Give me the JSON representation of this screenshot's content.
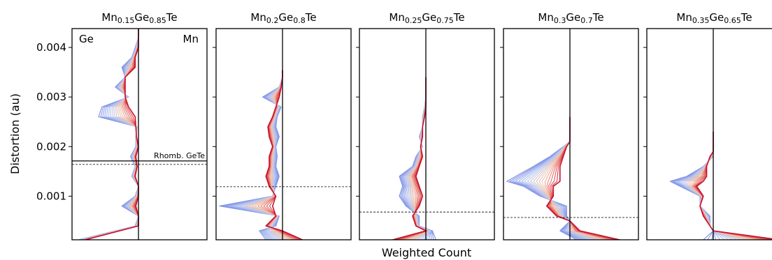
{
  "figure": {
    "ylabel": "Distortion (au)",
    "xlabel": "Weighted Count",
    "ylim": [
      0.00012,
      0.00438
    ],
    "yticks": [
      {
        "value": 0.001,
        "label": "0.001"
      },
      {
        "value": 0.002,
        "label": "0.002"
      },
      {
        "value": 0.003,
        "label": "0.003"
      },
      {
        "value": 0.004,
        "label": "0.004"
      }
    ],
    "gradient_colors": [
      "#7b8ee6",
      "#b6c6f2",
      "#f2c2ac",
      "#d4242c"
    ],
    "final_color": "#c8102e"
  },
  "chart_data": [
    {
      "type": "line",
      "composition": "Mn0.15Ge0.85Te",
      "title_parts": [
        {
          "t": "Mn",
          "s": false
        },
        {
          "t": "0.15",
          "s": true
        },
        {
          "t": "Ge",
          "s": false
        },
        {
          "t": "0.85",
          "s": true
        },
        {
          "t": "Te",
          "s": false
        }
      ],
      "left_label": "Ge",
      "right_label": "Mn",
      "dashed_y": 0.00164,
      "ref_line": {
        "y": 0.00171,
        "label": "Rhomb. GeTe"
      },
      "y": [
        0.00012,
        0.0004,
        0.0006,
        0.0008,
        0.001,
        0.0012,
        0.0014,
        0.0016,
        0.0018,
        0.002,
        0.0022,
        0.0024,
        0.0026,
        0.0028,
        0.003,
        0.0032,
        0.0034,
        0.0036,
        0.0038,
        0.004,
        0.0042,
        0.00438
      ],
      "start": [
        -0.9,
        -0.05,
        0.0,
        -0.25,
        -0.05,
        0.0,
        -0.1,
        -0.05,
        -0.12,
        -0.04,
        -0.04,
        -0.02,
        -0.6,
        -0.55,
        -0.15,
        -0.35,
        -0.2,
        -0.25,
        -0.1,
        -0.05,
        0.0,
        0.0
      ],
      "end": [
        -0.8,
        0.0,
        0.0,
        -0.04,
        0.0,
        0.0,
        -0.05,
        -0.02,
        -0.04,
        0.0,
        -0.03,
        -0.04,
        -0.05,
        -0.15,
        -0.2,
        -0.2,
        -0.2,
        -0.05,
        -0.05,
        0.0,
        0.0,
        0.0
      ]
    },
    {
      "type": "line",
      "composition": "Mn0.2Ge0.8Te",
      "title_parts": [
        {
          "t": "Mn",
          "s": false
        },
        {
          "t": "0.2",
          "s": true
        },
        {
          "t": "Ge",
          "s": false
        },
        {
          "t": "0.8",
          "s": true
        },
        {
          "t": "Te",
          "s": false
        }
      ],
      "dashed_y": 0.00119,
      "y": [
        0.00012,
        0.0003,
        0.0004,
        0.0006,
        0.0008,
        0.001,
        0.0012,
        0.0014,
        0.0016,
        0.0018,
        0.002,
        0.0022,
        0.0024,
        0.0026,
        0.0028,
        0.003,
        0.0032,
        0.0034,
        0.00354
      ],
      "start": [
        -0.25,
        -0.35,
        -0.1,
        -0.05,
        -0.95,
        -0.15,
        -0.1,
        -0.05,
        -0.1,
        -0.08,
        -0.1,
        -0.05,
        -0.1,
        -0.08,
        -0.02,
        -0.3,
        -0.05,
        0.0,
        0.0
      ],
      "end": [
        0.3,
        0.0,
        -0.25,
        -0.1,
        -0.15,
        -0.1,
        -0.2,
        -0.25,
        -0.2,
        -0.2,
        -0.15,
        -0.2,
        -0.22,
        -0.15,
        -0.1,
        -0.05,
        -0.02,
        0.0,
        0.0
      ]
    },
    {
      "type": "line",
      "composition": "Mn0.25Ge0.75Te",
      "title_parts": [
        {
          "t": "Mn",
          "s": false
        },
        {
          "t": "0.25",
          "s": true
        },
        {
          "t": "Ge",
          "s": false
        },
        {
          "t": "0.75",
          "s": true
        },
        {
          "t": "Te",
          "s": false
        }
      ],
      "dashed_y": 0.00068,
      "y": [
        0.00012,
        0.0003,
        0.0004,
        0.0006,
        0.0008,
        0.001,
        0.0012,
        0.0014,
        0.0016,
        0.0018,
        0.002,
        0.0022,
        0.0024,
        0.0026,
        0.0028,
        0.003,
        0.0032,
        0.0034
      ],
      "start": [
        0.15,
        0.1,
        -0.1,
        -0.1,
        -0.3,
        -0.4,
        -0.35,
        -0.4,
        -0.2,
        -0.15,
        -0.05,
        -0.1,
        -0.05,
        -0.05,
        -0.02,
        0.0,
        0.0,
        0.0
      ],
      "end": [
        -0.5,
        0.0,
        -0.15,
        -0.2,
        -0.1,
        -0.05,
        -0.1,
        -0.15,
        -0.1,
        -0.05,
        -0.08,
        -0.05,
        -0.05,
        -0.02,
        0.0,
        0.0,
        0.0,
        0.0
      ]
    },
    {
      "type": "line",
      "composition": "Mn0.3Ge0.7Te",
      "title_parts": [
        {
          "t": "Mn",
          "s": false
        },
        {
          "t": "0.3",
          "s": true
        },
        {
          "t": "Ge",
          "s": false
        },
        {
          "t": "0.7",
          "s": true
        },
        {
          "t": "Te",
          "s": false
        }
      ],
      "dashed_y": 0.00057,
      "y": [
        0.00012,
        0.0003,
        0.0005,
        0.0006,
        0.0008,
        0.001,
        0.0012,
        0.0013,
        0.0016,
        0.0018,
        0.002,
        0.0021,
        0.0023,
        0.0025,
        0.0026
      ],
      "start": [
        0.1,
        -0.15,
        0.0,
        -0.05,
        -0.05,
        -0.45,
        -0.7,
        -0.95,
        -0.55,
        -0.3,
        -0.1,
        0.0,
        0.0,
        0.0,
        0.0
      ],
      "end": [
        0.75,
        0.15,
        0.0,
        -0.2,
        -0.35,
        -0.25,
        -0.25,
        -0.15,
        -0.15,
        -0.1,
        -0.05,
        0.0,
        0.0,
        0.0,
        0.0
      ]
    },
    {
      "type": "line",
      "composition": "Mn0.35Ge0.65Te",
      "title_parts": [
        {
          "t": "Mn",
          "s": false
        },
        {
          "t": "0.35",
          "s": true
        },
        {
          "t": "Ge",
          "s": false
        },
        {
          "t": "0.65",
          "s": true
        },
        {
          "t": "Te",
          "s": false
        }
      ],
      "y": [
        0.00012,
        0.0003,
        0.0004,
        0.0006,
        0.0008,
        0.001,
        0.0012,
        0.0013,
        0.0014,
        0.0016,
        0.0018,
        0.0019,
        0.0021,
        0.0023
      ],
      "start": [
        -0.15,
        0.0,
        -0.05,
        -0.05,
        -0.2,
        -0.2,
        -0.5,
        -0.65,
        -0.4,
        -0.15,
        0.0,
        0.0,
        0.0,
        0.0
      ],
      "end": [
        1.0,
        0.0,
        -0.05,
        -0.15,
        -0.2,
        -0.15,
        -0.25,
        -0.15,
        -0.1,
        -0.1,
        -0.05,
        0.0,
        0.0,
        0.0
      ]
    }
  ]
}
